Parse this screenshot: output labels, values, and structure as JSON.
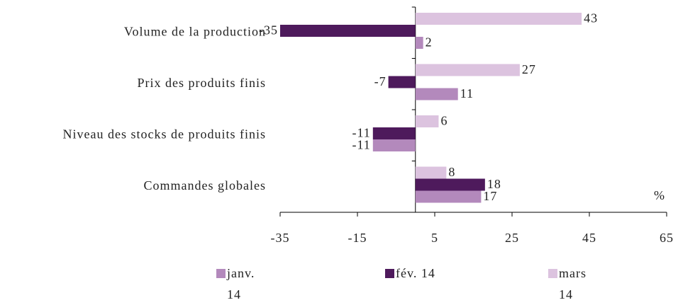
{
  "chart_data": {
    "type": "bar",
    "orientation": "horizontal",
    "categories": [
      "Volume de la production",
      "Prix des produits finis",
      "Niveau des stocks de produits finis",
      "Commandes globales"
    ],
    "series": [
      {
        "name": "janv. 14",
        "color": "#b389bc",
        "values": [
          2,
          11,
          -11,
          17
        ]
      },
      {
        "name": "fév. 14",
        "color": "#4e1a5c",
        "values": [
          -35,
          -7,
          -11,
          18
        ]
      },
      {
        "name": "mars 14",
        "color": "#dcc3df",
        "values": [
          43,
          27,
          6,
          8
        ]
      }
    ],
    "xlim": [
      -35,
      65
    ],
    "xticks": [
      -35,
      -15,
      5,
      25,
      45,
      65
    ],
    "unit": "%",
    "legend": "bottom"
  }
}
